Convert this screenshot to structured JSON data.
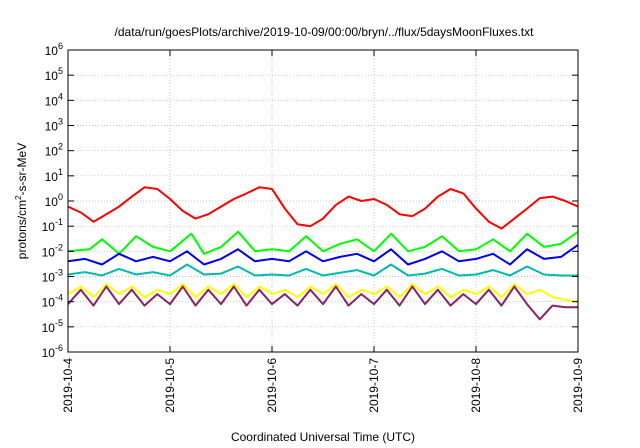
{
  "chart_data": {
    "type": "line",
    "title": "/data/run/goesPlots/archive/2019-10-09/00:00/bryn/../flux/5daysMoonFluxes.txt",
    "xlabel": "Coordinated Universal Time (UTC)",
    "ylabel": {
      "pre": "protons/cm",
      "sup": "2",
      "post": "-s-sr-MeV"
    },
    "y_scale": "log",
    "ylim": [
      1e-06,
      1000000.0
    ],
    "y_ticks": [
      {
        "value": 1e-06,
        "base": "10",
        "exp": "-6"
      },
      {
        "value": 1e-05,
        "base": "10",
        "exp": "-5"
      },
      {
        "value": 0.0001,
        "base": "10",
        "exp": "-4"
      },
      {
        "value": 0.001,
        "base": "10",
        "exp": "-3"
      },
      {
        "value": 0.01,
        "base": "10",
        "exp": "-2"
      },
      {
        "value": 0.1,
        "base": "10",
        "exp": "-1"
      },
      {
        "value": 1.0,
        "base": "10",
        "exp": "0"
      },
      {
        "value": 10.0,
        "base": "10",
        "exp": "1"
      },
      {
        "value": 100.0,
        "base": "10",
        "exp": "2"
      },
      {
        "value": 1000.0,
        "base": "10",
        "exp": "3"
      },
      {
        "value": 10000.0,
        "base": "10",
        "exp": "4"
      },
      {
        "value": 100000.0,
        "base": "10",
        "exp": "5"
      },
      {
        "value": 1000000.0,
        "base": "10",
        "exp": "6"
      }
    ],
    "x_ticks": [
      "2019-10-4",
      "2019-10-5",
      "2019-10-6",
      "2019-10-7",
      "2019-10-8",
      "2019-10-9"
    ],
    "x_range": [
      "2019-10-04",
      "2019-10-09"
    ],
    "grid": true,
    "series": [
      {
        "color": "#ff0000",
        "x": [
          "2019-10-04 00:00",
          "2019-10-04 03:00",
          "2019-10-04 06:00",
          "2019-10-04 09:00",
          "2019-10-04 12:00",
          "2019-10-04 15:00",
          "2019-10-04 18:00",
          "2019-10-04 21:00",
          "2019-10-05 00:00",
          "2019-10-05 03:00",
          "2019-10-05 06:00",
          "2019-10-05 09:00",
          "2019-10-05 12:00",
          "2019-10-05 15:00",
          "2019-10-05 18:00",
          "2019-10-05 21:00",
          "2019-10-06 00:00",
          "2019-10-06 03:00",
          "2019-10-06 06:00",
          "2019-10-06 09:00",
          "2019-10-06 12:00",
          "2019-10-06 15:00",
          "2019-10-06 18:00",
          "2019-10-06 21:00",
          "2019-10-07 00:00",
          "2019-10-07 03:00",
          "2019-10-07 06:00",
          "2019-10-07 09:00",
          "2019-10-07 12:00",
          "2019-10-07 15:00",
          "2019-10-07 18:00",
          "2019-10-07 21:00",
          "2019-10-08 00:00",
          "2019-10-08 03:00",
          "2019-10-08 06:00",
          "2019-10-08 09:00",
          "2019-10-08 12:00",
          "2019-10-08 15:00",
          "2019-10-08 18:00",
          "2019-10-08 21:00",
          "2019-10-09 00:00"
        ],
        "values": [
          0.6,
          0.35,
          0.15,
          0.3,
          0.6,
          1.5,
          3.5,
          3,
          1.2,
          0.4,
          0.2,
          0.3,
          0.6,
          1.2,
          2,
          3.5,
          3,
          0.5,
          0.12,
          0.1,
          0.2,
          0.7,
          1.5,
          1,
          1.2,
          0.7,
          0.3,
          0.25,
          0.5,
          1.5,
          3,
          2,
          0.5,
          0.15,
          0.08,
          0.2,
          0.5,
          1.3,
          1.5,
          1,
          0.6
        ]
      },
      {
        "color": "#00ff00",
        "x": [
          "2019-10-04 00:00",
          "2019-10-04 05:00",
          "2019-10-04 08:00",
          "2019-10-04 12:00",
          "2019-10-04 16:00",
          "2019-10-04 20:00",
          "2019-10-05 00:00",
          "2019-10-05 05:00",
          "2019-10-05 08:00",
          "2019-10-05 12:00",
          "2019-10-05 16:00",
          "2019-10-05 20:00",
          "2019-10-06 00:00",
          "2019-10-06 04:00",
          "2019-10-06 08:00",
          "2019-10-06 12:00",
          "2019-10-06 16:00",
          "2019-10-06 20:00",
          "2019-10-07 00:00",
          "2019-10-07 04:00",
          "2019-10-07 08:00",
          "2019-10-07 12:00",
          "2019-10-07 16:00",
          "2019-10-07 20:00",
          "2019-10-08 00:00",
          "2019-10-08 04:00",
          "2019-10-08 08:00",
          "2019-10-08 12:00",
          "2019-10-08 16:00",
          "2019-10-08 20:00",
          "2019-10-09 00:00"
        ],
        "values": [
          0.01,
          0.012,
          0.03,
          0.008,
          0.04,
          0.015,
          0.01,
          0.05,
          0.008,
          0.015,
          0.06,
          0.01,
          0.012,
          0.01,
          0.04,
          0.01,
          0.02,
          0.03,
          0.01,
          0.05,
          0.01,
          0.015,
          0.04,
          0.01,
          0.012,
          0.03,
          0.01,
          0.05,
          0.015,
          0.02,
          0.06
        ]
      },
      {
        "color": "#0000ee",
        "x": [
          "2019-10-04 00:00",
          "2019-10-04 04:00",
          "2019-10-04 08:00",
          "2019-10-04 12:00",
          "2019-10-04 16:00",
          "2019-10-04 20:00",
          "2019-10-05 00:00",
          "2019-10-05 04:00",
          "2019-10-05 08:00",
          "2019-10-05 12:00",
          "2019-10-05 16:00",
          "2019-10-05 20:00",
          "2019-10-06 00:00",
          "2019-10-06 04:00",
          "2019-10-06 08:00",
          "2019-10-06 12:00",
          "2019-10-06 16:00",
          "2019-10-06 20:00",
          "2019-10-07 00:00",
          "2019-10-07 04:00",
          "2019-10-07 08:00",
          "2019-10-07 12:00",
          "2019-10-07 16:00",
          "2019-10-07 20:00",
          "2019-10-08 00:00",
          "2019-10-08 04:00",
          "2019-10-08 08:00",
          "2019-10-08 12:00",
          "2019-10-08 16:00",
          "2019-10-08 20:00",
          "2019-10-09 00:00"
        ],
        "values": [
          0.004,
          0.005,
          0.003,
          0.008,
          0.004,
          0.006,
          0.004,
          0.01,
          0.003,
          0.005,
          0.012,
          0.004,
          0.005,
          0.004,
          0.01,
          0.004,
          0.006,
          0.008,
          0.004,
          0.012,
          0.003,
          0.005,
          0.01,
          0.004,
          0.005,
          0.008,
          0.003,
          0.012,
          0.005,
          0.006,
          0.018
        ]
      },
      {
        "color": "#00bbaa",
        "x": [
          "2019-10-04 00:00",
          "2019-10-04 04:00",
          "2019-10-04 08:00",
          "2019-10-04 12:00",
          "2019-10-04 16:00",
          "2019-10-04 20:00",
          "2019-10-05 00:00",
          "2019-10-05 04:00",
          "2019-10-05 08:00",
          "2019-10-05 12:00",
          "2019-10-05 16:00",
          "2019-10-05 20:00",
          "2019-10-06 00:00",
          "2019-10-06 04:00",
          "2019-10-06 08:00",
          "2019-10-06 12:00",
          "2019-10-06 16:00",
          "2019-10-06 20:00",
          "2019-10-07 00:00",
          "2019-10-07 04:00",
          "2019-10-07 08:00",
          "2019-10-07 12:00",
          "2019-10-07 16:00",
          "2019-10-07 20:00",
          "2019-10-08 00:00",
          "2019-10-08 04:00",
          "2019-10-08 08:00",
          "2019-10-08 12:00",
          "2019-10-08 16:00",
          "2019-10-08 20:00",
          "2019-10-09 00:00"
        ],
        "values": [
          0.0012,
          0.0015,
          0.0011,
          0.002,
          0.0012,
          0.0015,
          0.0011,
          0.003,
          0.0012,
          0.0013,
          0.0025,
          0.0011,
          0.0012,
          0.0011,
          0.002,
          0.0011,
          0.0014,
          0.0018,
          0.0011,
          0.003,
          0.0011,
          0.0013,
          0.002,
          0.0011,
          0.0012,
          0.0018,
          0.0011,
          0.0025,
          0.0012,
          0.0011,
          0.0011
        ]
      },
      {
        "color": "#ffff00",
        "x": [
          "2019-10-04 00:00",
          "2019-10-04 03:00",
          "2019-10-04 06:00",
          "2019-10-04 09:00",
          "2019-10-04 12:00",
          "2019-10-04 15:00",
          "2019-10-04 18:00",
          "2019-10-04 21:00",
          "2019-10-05 00:00",
          "2019-10-05 03:00",
          "2019-10-05 06:00",
          "2019-10-05 09:00",
          "2019-10-05 12:00",
          "2019-10-05 15:00",
          "2019-10-05 18:00",
          "2019-10-05 21:00",
          "2019-10-06 00:00",
          "2019-10-06 03:00",
          "2019-10-06 06:00",
          "2019-10-06 09:00",
          "2019-10-06 12:00",
          "2019-10-06 15:00",
          "2019-10-06 18:00",
          "2019-10-06 21:00",
          "2019-10-07 00:00",
          "2019-10-07 03:00",
          "2019-10-07 06:00",
          "2019-10-07 09:00",
          "2019-10-07 12:00",
          "2019-10-07 15:00",
          "2019-10-07 18:00",
          "2019-10-07 21:00",
          "2019-10-08 00:00",
          "2019-10-08 03:00",
          "2019-10-08 06:00",
          "2019-10-08 09:00",
          "2019-10-08 12:00",
          "2019-10-08 15:00",
          "2019-10-08 18:00",
          "2019-10-08 21:00",
          "2019-10-09 00:00"
        ],
        "values": [
          0.0002,
          0.0004,
          0.00015,
          0.0005,
          0.0002,
          0.0004,
          0.00015,
          0.0003,
          0.0002,
          0.0005,
          0.00015,
          0.0004,
          0.0002,
          0.0005,
          0.00015,
          0.0004,
          0.0002,
          0.0003,
          0.00015,
          0.0004,
          0.0002,
          0.0005,
          0.00015,
          0.0003,
          0.0002,
          0.0004,
          0.00015,
          0.0005,
          0.0002,
          0.0004,
          0.00015,
          0.0003,
          0.0002,
          0.0004,
          0.00015,
          0.0005,
          0.0002,
          0.0003,
          0.00015,
          0.00012,
          0.0001
        ]
      },
      {
        "color": "#882266",
        "x": [
          "2019-10-04 00:00",
          "2019-10-04 03:00",
          "2019-10-04 06:00",
          "2019-10-04 09:00",
          "2019-10-04 12:00",
          "2019-10-04 15:00",
          "2019-10-04 18:00",
          "2019-10-04 21:00",
          "2019-10-05 00:00",
          "2019-10-05 03:00",
          "2019-10-05 06:00",
          "2019-10-05 09:00",
          "2019-10-05 12:00",
          "2019-10-05 15:00",
          "2019-10-05 18:00",
          "2019-10-05 21:00",
          "2019-10-06 00:00",
          "2019-10-06 03:00",
          "2019-10-06 06:00",
          "2019-10-06 09:00",
          "2019-10-06 12:00",
          "2019-10-06 15:00",
          "2019-10-06 18:00",
          "2019-10-06 21:00",
          "2019-10-07 00:00",
          "2019-10-07 03:00",
          "2019-10-07 06:00",
          "2019-10-07 09:00",
          "2019-10-07 12:00",
          "2019-10-07 15:00",
          "2019-10-07 18:00",
          "2019-10-07 21:00",
          "2019-10-08 00:00",
          "2019-10-08 03:00",
          "2019-10-08 06:00",
          "2019-10-08 09:00",
          "2019-10-08 12:00",
          "2019-10-08 15:00",
          "2019-10-08 18:00",
          "2019-10-08 21:00",
          "2019-10-09 00:00"
        ],
        "values": [
          8e-05,
          0.0003,
          7e-05,
          0.0004,
          8e-05,
          0.0003,
          7e-05,
          0.0002,
          8e-05,
          0.0004,
          7e-05,
          0.0003,
          8e-05,
          0.0004,
          7e-05,
          0.0003,
          8e-05,
          0.0002,
          7e-05,
          0.0003,
          8e-05,
          0.0004,
          7e-05,
          0.0002,
          8e-05,
          0.0003,
          7e-05,
          0.0004,
          8e-05,
          0.0003,
          7e-05,
          0.0002,
          8e-05,
          0.0003,
          7e-05,
          0.0004,
          8e-05,
          2e-05,
          7e-05,
          6e-05,
          6e-05
        ]
      }
    ]
  }
}
